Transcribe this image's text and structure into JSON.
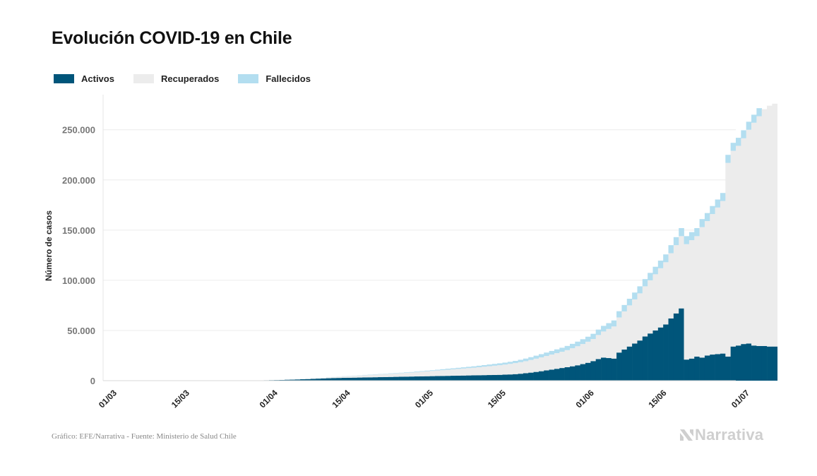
{
  "title": "Evolución COVID-19 en Chile",
  "legend": [
    {
      "label": "Activos",
      "color": "#00557a"
    },
    {
      "label": "Recuperados",
      "color": "#ececec"
    },
    {
      "label": "Fallecidos",
      "color": "#b3def0"
    }
  ],
  "source": "Gráfico: EFE/Narrativa - Fuente: Ministerio de Salud Chile",
  "logo": {
    "text": "Narrativa",
    "icon": "narrativa-n-logo-icon"
  },
  "chart_data": {
    "type": "bar",
    "stacked": true,
    "ylabel": "Número de casos",
    "ylim": [
      0,
      285000
    ],
    "yticks": [
      0,
      50000,
      100000,
      150000,
      200000,
      250000
    ],
    "ytick_labels": [
      "0",
      "50.000",
      "100.000",
      "150.000",
      "200.000",
      "250.000"
    ],
    "xticks": [
      "01/03",
      "15/03",
      "01/04",
      "15/04",
      "01/05",
      "15/05",
      "01/06",
      "15/06",
      "01/07"
    ],
    "xrange_days": [
      0,
      122
    ],
    "grid": "horizontal",
    "series": [
      {
        "name": "Activos",
        "color": "#00557a",
        "values": [
          0,
          0,
          0,
          0,
          0,
          0,
          0,
          0,
          0,
          0,
          0,
          0,
          0,
          0,
          0,
          0,
          0,
          0,
          0,
          0,
          0,
          0,
          0,
          0,
          0,
          0,
          0,
          0,
          0,
          0,
          300,
          400,
          500,
          600,
          700,
          900,
          1000,
          1200,
          1400,
          1600,
          1800,
          2000,
          2200,
          2400,
          2600,
          2700,
          2800,
          2900,
          3000,
          3100,
          3200,
          3300,
          3400,
          3500,
          3600,
          3700,
          3800,
          3900,
          4000,
          4100,
          4200,
          4300,
          4400,
          4500,
          4600,
          4700,
          4800,
          4900,
          5000,
          5100,
          5200,
          5300,
          5400,
          5500,
          5600,
          5700,
          5800,
          6000,
          6200,
          6500,
          6900,
          7400,
          8000,
          8700,
          9400,
          10200,
          11000,
          11800,
          12600,
          13400,
          14300,
          15300,
          16500,
          17800,
          19500,
          21500,
          23000,
          22500,
          22000,
          28000,
          31000,
          34000,
          37000,
          40000,
          44000,
          47000,
          50000,
          53000,
          56000,
          62000,
          67000,
          72000,
          21000,
          22000,
          24000,
          23000,
          25000,
          26000,
          26500,
          27000,
          24000,
          34000,
          35000,
          36500,
          37000,
          35000,
          34500,
          34500,
          34000,
          34000
        ]
      },
      {
        "name": "Recuperados",
        "color": "#ececec",
        "values": [
          0,
          0,
          0,
          0,
          0,
          0,
          0,
          0,
          0,
          0,
          0,
          0,
          0,
          0,
          0,
          0,
          0,
          0,
          0,
          0,
          0,
          0,
          0,
          0,
          0,
          0,
          0,
          0,
          0,
          0,
          0,
          0,
          0,
          0,
          0,
          0,
          0,
          100,
          200,
          300,
          400,
          500,
          600,
          800,
          1000,
          1200,
          1400,
          1600,
          1800,
          2000,
          2200,
          2400,
          2600,
          2800,
          3000,
          3200,
          3400,
          3600,
          3800,
          4000,
          4300,
          4600,
          4900,
          5200,
          5500,
          5800,
          6100,
          6400,
          6700,
          7000,
          7300,
          7600,
          8000,
          8400,
          8800,
          9200,
          9600,
          10000,
          10500,
          11000,
          11500,
          12000,
          12600,
          13200,
          13800,
          14400,
          15000,
          15600,
          16200,
          17000,
          18000,
          19000,
          20000,
          21000,
          22000,
          24000,
          26000,
          29000,
          32000,
          35000,
          38000,
          41000,
          44000,
          47000,
          50000,
          53000,
          56000,
          59000,
          62000,
          65000,
          68000,
          72000,
          115000,
          118000,
          120000,
          130000,
          134000,
          140000,
          146000,
          152000,
          193000,
          195000,
          199000,
          205000,
          213000,
          222000,
          229000,
          236000,
          240000,
          242000
        ]
      },
      {
        "name": "Fallecidos",
        "color": "#b3def0",
        "values": [
          0,
          0,
          0,
          0,
          0,
          0,
          0,
          0,
          0,
          0,
          0,
          0,
          0,
          0,
          0,
          0,
          0,
          0,
          0,
          0,
          0,
          0,
          0,
          0,
          0,
          0,
          0,
          0,
          0,
          0,
          0,
          0,
          0,
          0,
          0,
          0,
          0,
          0,
          0,
          0,
          0,
          100,
          100,
          100,
          100,
          100,
          200,
          200,
          200,
          200,
          300,
          300,
          300,
          300,
          300,
          400,
          400,
          400,
          500,
          500,
          600,
          600,
          700,
          700,
          800,
          900,
          1000,
          1000,
          1100,
          1200,
          1300,
          1400,
          1500,
          1600,
          1700,
          1800,
          1900,
          2000,
          2100,
          2200,
          2400,
          2600,
          2800,
          3000,
          3200,
          3400,
          3600,
          3800,
          4000,
          4200,
          4400,
          4600,
          4800,
          5000,
          5200,
          5400,
          5600,
          5800,
          6000,
          6200,
          6400,
          6600,
          6800,
          7000,
          7200,
          7400,
          7500,
          7600,
          7800,
          8000,
          8000,
          8000,
          8000,
          8000,
          8000,
          8000,
          8000,
          8000,
          8000,
          8000,
          8000,
          8000,
          8000,
          8000,
          8000,
          8000,
          8000
        ]
      }
    ]
  }
}
